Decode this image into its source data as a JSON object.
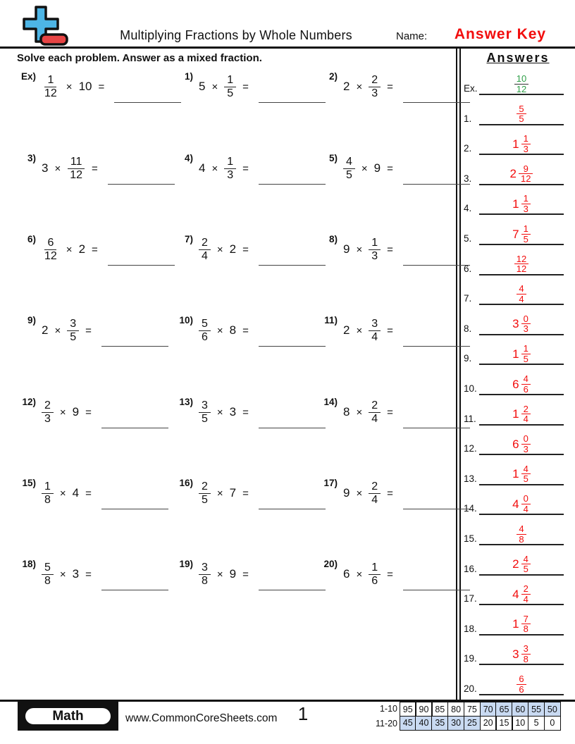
{
  "header": {
    "title": "Multiplying Fractions by Whole Numbers",
    "name_label": "Name:",
    "answer_key": "Answer Key",
    "instruction": "Solve each problem. Answer as a mixed fraction.",
    "answers_title": "Answers"
  },
  "symbols": {
    "times": "×",
    "equals": "="
  },
  "colors": {
    "ink": "#111111",
    "answer_red": "#f20d0d",
    "answer_green": "#2e9e47",
    "score_shade_blue": "#c9daf2",
    "logo_blue": "#4db5e6",
    "logo_red": "#e84545"
  },
  "problems": [
    {
      "label": "Ex)",
      "order": "fw",
      "n": "1",
      "d": "12",
      "whole": "10"
    },
    {
      "label": "1)",
      "order": "wf",
      "n": "1",
      "d": "5",
      "whole": "5"
    },
    {
      "label": "2)",
      "order": "wf",
      "n": "2",
      "d": "3",
      "whole": "2"
    },
    {
      "label": "3)",
      "order": "wf",
      "n": "11",
      "d": "12",
      "whole": "3"
    },
    {
      "label": "4)",
      "order": "wf",
      "n": "1",
      "d": "3",
      "whole": "4"
    },
    {
      "label": "5)",
      "order": "fw",
      "n": "4",
      "d": "5",
      "whole": "9"
    },
    {
      "label": "6)",
      "order": "fw",
      "n": "6",
      "d": "12",
      "whole": "2"
    },
    {
      "label": "7)",
      "order": "fw",
      "n": "2",
      "d": "4",
      "whole": "2"
    },
    {
      "label": "8)",
      "order": "wf",
      "n": "1",
      "d": "3",
      "whole": "9"
    },
    {
      "label": "9)",
      "order": "wf",
      "n": "3",
      "d": "5",
      "whole": "2"
    },
    {
      "label": "10)",
      "order": "fw",
      "n": "5",
      "d": "6",
      "whole": "8"
    },
    {
      "label": "11)",
      "order": "wf",
      "n": "3",
      "d": "4",
      "whole": "2"
    },
    {
      "label": "12)",
      "order": "fw",
      "n": "2",
      "d": "3",
      "whole": "9"
    },
    {
      "label": "13)",
      "order": "fw",
      "n": "3",
      "d": "5",
      "whole": "3"
    },
    {
      "label": "14)",
      "order": "wf",
      "n": "2",
      "d": "4",
      "whole": "8"
    },
    {
      "label": "15)",
      "order": "fw",
      "n": "1",
      "d": "8",
      "whole": "4"
    },
    {
      "label": "16)",
      "order": "fw",
      "n": "2",
      "d": "5",
      "whole": "7"
    },
    {
      "label": "17)",
      "order": "wf",
      "n": "2",
      "d": "4",
      "whole": "9"
    },
    {
      "label": "18)",
      "order": "fw",
      "n": "5",
      "d": "8",
      "whole": "3"
    },
    {
      "label": "19)",
      "order": "fw",
      "n": "3",
      "d": "8",
      "whole": "9"
    },
    {
      "label": "20)",
      "order": "wf",
      "n": "1",
      "d": "6",
      "whole": "6"
    }
  ],
  "answers": [
    {
      "label": "Ex.",
      "whole": "",
      "n": "10",
      "d": "12",
      "color": "green"
    },
    {
      "label": "1.",
      "whole": "",
      "n": "5",
      "d": "5",
      "color": "red"
    },
    {
      "label": "2.",
      "whole": "1",
      "n": "1",
      "d": "3",
      "color": "red"
    },
    {
      "label": "3.",
      "whole": "2",
      "n": "9",
      "d": "12",
      "color": "red"
    },
    {
      "label": "4.",
      "whole": "1",
      "n": "1",
      "d": "3",
      "color": "red"
    },
    {
      "label": "5.",
      "whole": "7",
      "n": "1",
      "d": "5",
      "color": "red"
    },
    {
      "label": "6.",
      "whole": "",
      "n": "12",
      "d": "12",
      "color": "red"
    },
    {
      "label": "7.",
      "whole": "",
      "n": "4",
      "d": "4",
      "color": "red"
    },
    {
      "label": "8.",
      "whole": "3",
      "n": "0",
      "d": "3",
      "color": "red"
    },
    {
      "label": "9.",
      "whole": "1",
      "n": "1",
      "d": "5",
      "color": "red"
    },
    {
      "label": "10.",
      "whole": "6",
      "n": "4",
      "d": "6",
      "color": "red"
    },
    {
      "label": "11.",
      "whole": "1",
      "n": "2",
      "d": "4",
      "color": "red"
    },
    {
      "label": "12.",
      "whole": "6",
      "n": "0",
      "d": "3",
      "color": "red"
    },
    {
      "label": "13.",
      "whole": "1",
      "n": "4",
      "d": "5",
      "color": "red"
    },
    {
      "label": "14.",
      "whole": "4",
      "n": "0",
      "d": "4",
      "color": "red"
    },
    {
      "label": "15.",
      "whole": "",
      "n": "4",
      "d": "8",
      "color": "red"
    },
    {
      "label": "16.",
      "whole": "2",
      "n": "4",
      "d": "5",
      "color": "red"
    },
    {
      "label": "17.",
      "whole": "4",
      "n": "2",
      "d": "4",
      "color": "red"
    },
    {
      "label": "18.",
      "whole": "1",
      "n": "7",
      "d": "8",
      "color": "red"
    },
    {
      "label": "19.",
      "whole": "3",
      "n": "3",
      "d": "8",
      "color": "red"
    },
    {
      "label": "20.",
      "whole": "",
      "n": "6",
      "d": "6",
      "color": "red"
    }
  ],
  "footer": {
    "subject": "Math",
    "website": "www.CommonCoreSheets.com",
    "page": "1",
    "score_rows": [
      {
        "label": "1-10",
        "cells": [
          "95",
          "90",
          "85",
          "80",
          "75",
          "70",
          "65",
          "60",
          "55",
          "50"
        ],
        "shaded": [
          false,
          false,
          false,
          false,
          false,
          true,
          true,
          true,
          true,
          true
        ]
      },
      {
        "label": "11-20",
        "cells": [
          "45",
          "40",
          "35",
          "30",
          "25",
          "20",
          "15",
          "10",
          "5",
          "0"
        ],
        "shaded": [
          true,
          true,
          true,
          true,
          true,
          false,
          false,
          false,
          false,
          false
        ]
      }
    ]
  }
}
